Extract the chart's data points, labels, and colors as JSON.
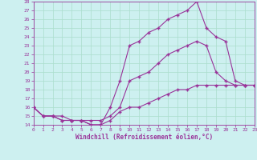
{
  "xlabel": "Windchill (Refroidissement éolien,°C)",
  "bg_color": "#cdf0f0",
  "line_color": "#993399",
  "grid_color": "#aaddcc",
  "x": [
    0,
    1,
    2,
    3,
    4,
    5,
    6,
    7,
    8,
    9,
    10,
    11,
    12,
    13,
    14,
    15,
    16,
    17,
    18,
    19,
    20,
    21,
    22,
    23
  ],
  "y_max": [
    16,
    15,
    15,
    15,
    14.5,
    14.5,
    14,
    14,
    16,
    19,
    23,
    23.5,
    24.5,
    25,
    26,
    26.5,
    27,
    28,
    25,
    24,
    23.5,
    19,
    18.5,
    18.5
  ],
  "y_mid": [
    16,
    15,
    15,
    14.5,
    14.5,
    14.5,
    14.5,
    14.5,
    15,
    16,
    19,
    19.5,
    20,
    21,
    22,
    22.5,
    23,
    23.5,
    23,
    20,
    19,
    18.5,
    18.5,
    18.5
  ],
  "y_min": [
    16,
    15,
    15,
    14.5,
    14.5,
    14.5,
    14,
    14,
    14.5,
    15.5,
    16,
    16,
    16.5,
    17,
    17.5,
    18,
    18,
    18.5,
    18.5,
    18.5,
    18.5,
    18.5,
    18.5,
    18.5
  ],
  "xlim": [
    0,
    23
  ],
  "ylim": [
    14,
    28
  ],
  "yticks": [
    14,
    15,
    16,
    17,
    18,
    19,
    20,
    21,
    22,
    23,
    24,
    25,
    26,
    27,
    28
  ],
  "xticks": [
    0,
    1,
    2,
    3,
    4,
    5,
    6,
    7,
    8,
    9,
    10,
    11,
    12,
    13,
    14,
    15,
    16,
    17,
    18,
    19,
    20,
    21,
    22,
    23
  ],
  "marker": "+",
  "markersize": 3,
  "linewidth": 0.8,
  "tick_fontsize": 4.5,
  "xlabel_fontsize": 5.5
}
